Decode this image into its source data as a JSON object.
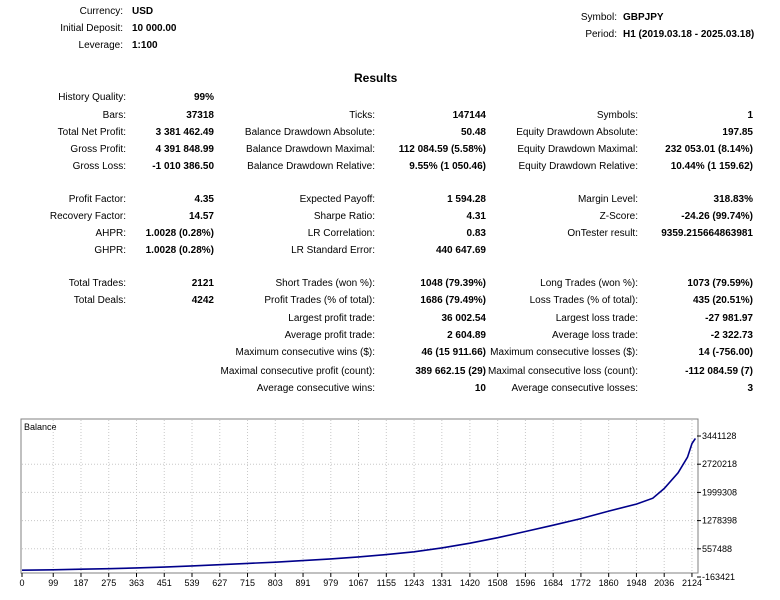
{
  "header": {
    "currency_label": "Currency:",
    "currency": "USD",
    "deposit_label": "Initial Deposit:",
    "deposit": "10 000.00",
    "leverage_label": "Leverage:",
    "leverage": "1:100",
    "symbol_label": "Symbol:",
    "symbol": "GBPJPY",
    "period_label": "Period:",
    "period": "H1 (2019.03.18 - 2025.03.18)"
  },
  "results_title": "Results",
  "rows": {
    "history_quality": {
      "label": "History Quality:",
      "value": "99%"
    },
    "bars": {
      "label": "Bars:",
      "value": "37318"
    },
    "ticks": {
      "label": "Ticks:",
      "value": "147144"
    },
    "symbols": {
      "label": "Symbols:",
      "value": "1"
    },
    "total_net_profit": {
      "label": "Total Net Profit:",
      "value": "3 381 462.49"
    },
    "balance_dd_abs": {
      "label": "Balance Drawdown Absolute:",
      "value": "50.48"
    },
    "equity_dd_abs": {
      "label": "Equity Drawdown Absolute:",
      "value": "197.85"
    },
    "gross_profit": {
      "label": "Gross Profit:",
      "value": "4 391 848.99"
    },
    "balance_dd_max": {
      "label": "Balance Drawdown Maximal:",
      "value": "112 084.59 (5.58%)"
    },
    "equity_dd_max": {
      "label": "Equity Drawdown Maximal:",
      "value": "232 053.01 (8.14%)"
    },
    "gross_loss": {
      "label": "Gross Loss:",
      "value": "-1 010 386.50"
    },
    "balance_dd_rel": {
      "label": "Balance Drawdown Relative:",
      "value": "9.55% (1 050.46)"
    },
    "equity_dd_rel": {
      "label": "Equity Drawdown Relative:",
      "value": "10.44% (1 159.62)"
    },
    "profit_factor": {
      "label": "Profit Factor:",
      "value": "4.35"
    },
    "expected_payoff": {
      "label": "Expected Payoff:",
      "value": "1 594.28"
    },
    "margin_level": {
      "label": "Margin Level:",
      "value": "318.83%"
    },
    "recovery_factor": {
      "label": "Recovery Factor:",
      "value": "14.57"
    },
    "sharpe_ratio": {
      "label": "Sharpe Ratio:",
      "value": "4.31"
    },
    "z_score": {
      "label": "Z-Score:",
      "value": "-24.26 (99.74%)"
    },
    "ahpr": {
      "label": "AHPR:",
      "value": "1.0028 (0.28%)"
    },
    "lr_correlation": {
      "label": "LR Correlation:",
      "value": "0.83"
    },
    "ontester": {
      "label": "OnTester result:",
      "value": "9359.215664863981"
    },
    "ghpr": {
      "label": "GHPR:",
      "value": "1.0028 (0.28%)"
    },
    "lr_std_error": {
      "label": "LR Standard Error:",
      "value": "440 647.69"
    },
    "total_trades": {
      "label": "Total Trades:",
      "value": "2121"
    },
    "short_trades": {
      "label": "Short Trades (won %):",
      "value": "1048 (79.39%)"
    },
    "long_trades": {
      "label": "Long Trades (won %):",
      "value": "1073 (79.59%)"
    },
    "total_deals": {
      "label": "Total Deals:",
      "value": "4242"
    },
    "profit_trades": {
      "label": "Profit Trades (% of total):",
      "value": "1686 (79.49%)"
    },
    "loss_trades": {
      "label": "Loss Trades (% of total):",
      "value": "435 (20.51%)"
    },
    "largest_profit": {
      "label": "Largest profit trade:",
      "value": "36 002.54"
    },
    "largest_loss": {
      "label": "Largest loss trade:",
      "value": "-27 981.97"
    },
    "avg_profit": {
      "label": "Average profit trade:",
      "value": "2 604.89"
    },
    "avg_loss": {
      "label": "Average loss trade:",
      "value": "-2 322.73"
    },
    "max_cons_wins": {
      "label": "Maximum consecutive wins ($):",
      "value": "46 (15 911.66)"
    },
    "max_cons_losses": {
      "label": "Maximum consecutive losses ($):",
      "value": "14 (-756.00)"
    },
    "maximal_cons_profit": {
      "label": "Maximal consecutive profit (count):",
      "value": "389 662.15 (29)"
    },
    "maximal_cons_loss": {
      "label": "Maximal consecutive loss (count):",
      "value": "-112 084.59 (7)"
    },
    "avg_cons_wins": {
      "label": "Average consecutive wins:",
      "value": "10"
    },
    "avg_cons_losses": {
      "label": "Average consecutive losses:",
      "value": "3"
    }
  },
  "chart_data": {
    "type": "line",
    "title": "Balance",
    "line_color": "#00008b",
    "grid": true,
    "x_ticks": [
      "0",
      "99",
      "187",
      "275",
      "363",
      "451",
      "539",
      "627",
      "715",
      "803",
      "891",
      "979",
      "1067",
      "1155",
      "1243",
      "1331",
      "1420",
      "1508",
      "1596",
      "1684",
      "1772",
      "1860",
      "1948",
      "2036",
      "2124"
    ],
    "y_ticks": [
      "3441128",
      "2720218",
      "1999308",
      "1278398",
      "557488",
      "-163421"
    ],
    "xlim": [
      0,
      2140
    ],
    "ylim": [
      -163421,
      3441128
    ],
    "series": [
      {
        "x": [
          0,
          99,
          187,
          275,
          363,
          451,
          539,
          627,
          715,
          803,
          891,
          979,
          1067,
          1155,
          1243,
          1331,
          1420,
          1508,
          1596,
          1684,
          1772,
          1860,
          1948,
          2000,
          2036,
          2080,
          2110,
          2124,
          2135
        ],
        "y": [
          10000,
          20000,
          35000,
          50000,
          70000,
          90000,
          120000,
          150000,
          185000,
          215000,
          255000,
          300000,
          350000,
          410000,
          480000,
          580000,
          700000,
          840000,
          1000000,
          1160000,
          1330000,
          1520000,
          1700000,
          1850000,
          2100000,
          2500000,
          2900000,
          3250000,
          3380000
        ]
      }
    ]
  }
}
